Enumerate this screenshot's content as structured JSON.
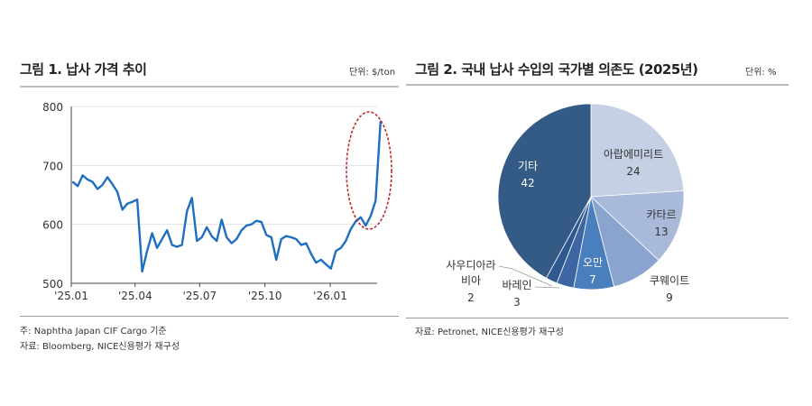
{
  "left": {
    "title": "그림 1. 납사 가격 추이",
    "unit": "단위: $/ton",
    "note1": "주: Naphtha Japan CIF Cargo 기준",
    "note2": "자료: Bloomberg, NICE신용평가 재구성"
  },
  "right": {
    "title": "그림 2. 국내 납사 수입의 국가별 의존도 (2025년)",
    "unit": "단위: %",
    "note1": "자료: Petronet, NICE신용평가 재구성"
  },
  "chart_data": [
    {
      "type": "line",
      "ylim": [
        500,
        800
      ],
      "yticks": [
        "500",
        "600",
        "700",
        "800"
      ],
      "xticks": [
        "'25.01",
        "'25.04",
        "'25.07",
        "'25.10",
        "'26.01"
      ],
      "grid": true,
      "line_color": "#1f6fc0",
      "highlight": "red dashed ellipse around the final surge",
      "points": [
        [
          "2025-01-03",
          672
        ],
        [
          "2025-01-10",
          665
        ],
        [
          "2025-01-17",
          683
        ],
        [
          "2025-01-24",
          676
        ],
        [
          "2025-01-31",
          672
        ],
        [
          "2025-02-07",
          660
        ],
        [
          "2025-02-14",
          667
        ],
        [
          "2025-02-21",
          680
        ],
        [
          "2025-02-28",
          668
        ],
        [
          "2025-03-07",
          655
        ],
        [
          "2025-03-14",
          625
        ],
        [
          "2025-03-21",
          635
        ],
        [
          "2025-03-28",
          638
        ],
        [
          "2025-04-04",
          642
        ],
        [
          "2025-04-11",
          520
        ],
        [
          "2025-04-18",
          555
        ],
        [
          "2025-04-25",
          585
        ],
        [
          "2025-05-02",
          560
        ],
        [
          "2025-05-09",
          575
        ],
        [
          "2025-05-16",
          590
        ],
        [
          "2025-05-23",
          565
        ],
        [
          "2025-05-30",
          562
        ],
        [
          "2025-06-06",
          565
        ],
        [
          "2025-06-13",
          622
        ],
        [
          "2025-06-20",
          645
        ],
        [
          "2025-06-27",
          572
        ],
        [
          "2025-07-04",
          578
        ],
        [
          "2025-07-11",
          595
        ],
        [
          "2025-07-18",
          580
        ],
        [
          "2025-07-25",
          572
        ],
        [
          "2025-08-01",
          608
        ],
        [
          "2025-08-08",
          578
        ],
        [
          "2025-08-15",
          568
        ],
        [
          "2025-08-22",
          575
        ],
        [
          "2025-08-29",
          590
        ],
        [
          "2025-09-05",
          598
        ],
        [
          "2025-09-12",
          600
        ],
        [
          "2025-09-19",
          606
        ],
        [
          "2025-09-26",
          604
        ],
        [
          "2025-10-03",
          582
        ],
        [
          "2025-10-10",
          578
        ],
        [
          "2025-10-17",
          540
        ],
        [
          "2025-10-24",
          575
        ],
        [
          "2025-10-31",
          580
        ],
        [
          "2025-11-07",
          578
        ],
        [
          "2025-11-14",
          575
        ],
        [
          "2025-11-21",
          565
        ],
        [
          "2025-11-28",
          568
        ],
        [
          "2025-12-05",
          550
        ],
        [
          "2025-12-12",
          535
        ],
        [
          "2025-12-19",
          540
        ],
        [
          "2025-12-26",
          532
        ],
        [
          "2026-01-02",
          525
        ],
        [
          "2026-01-09",
          555
        ],
        [
          "2026-01-16",
          560
        ],
        [
          "2026-01-23",
          572
        ],
        [
          "2026-01-30",
          592
        ],
        [
          "2026-02-06",
          605
        ],
        [
          "2026-02-13",
          612
        ],
        [
          "2026-02-20",
          598
        ],
        [
          "2026-02-27",
          614
        ],
        [
          "2026-03-06",
          640
        ],
        [
          "2026-03-13",
          775
        ]
      ]
    },
    {
      "type": "pie",
      "slices": [
        {
          "label": "아랍에미리트",
          "value": 24,
          "color": "#c6d0e4"
        },
        {
          "label": "카타르",
          "value": 13,
          "color": "#a9b9da"
        },
        {
          "label": "쿠웨이트",
          "value": 9,
          "color": "#8aa3cf"
        },
        {
          "label": "오만",
          "value": 7,
          "color": "#4a7fbd"
        },
        {
          "label": "바레인",
          "value": 3,
          "color": "#3d66a2"
        },
        {
          "label": "사우디아라비아",
          "value": 2,
          "color": "#2f5890"
        },
        {
          "label": "기타",
          "value": 42,
          "color": "#345a86"
        }
      ]
    }
  ]
}
